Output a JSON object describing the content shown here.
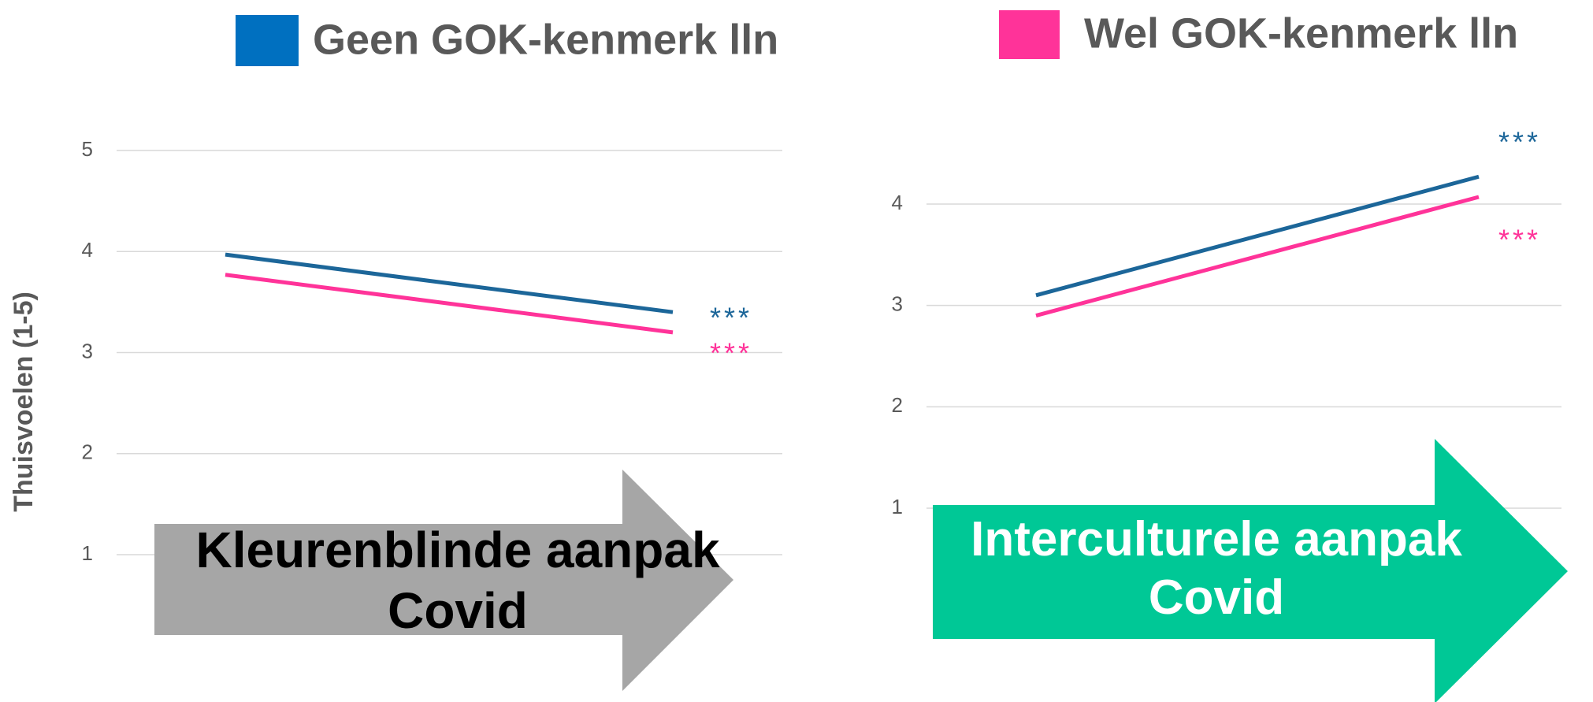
{
  "chart_data": [
    {
      "type": "line",
      "ylabel": "Thuisvoelen (1-5)",
      "categories": [
        null,
        null
      ],
      "series": [
        {
          "name": "Geen GOK-kenmerk lln",
          "color": "#1c6699",
          "values": [
            3.97,
            3.4
          ]
        },
        {
          "name": "Wel GOK-kenmerk lln",
          "color": "#ff3399",
          "values": [
            3.77,
            3.2
          ]
        }
      ],
      "ylim": [
        0,
        5
      ],
      "yticks": [
        1,
        2,
        3,
        4,
        5
      ],
      "grid": true,
      "annotations": [
        {
          "text": "***",
          "color": "#1c6699"
        },
        {
          "text": "***",
          "color": "#ff3399"
        }
      ],
      "arrow_label": "Kleurenblinde aanpak Covid",
      "arrow_color": "#a6a6a6",
      "arrow_text_color": "#000000"
    },
    {
      "type": "line",
      "categories": [
        null,
        null
      ],
      "series": [
        {
          "color": "#1c6699",
          "values": [
            3.1,
            4.27
          ]
        },
        {
          "color": "#ff3399",
          "values": [
            2.9,
            4.07
          ]
        }
      ],
      "ylim": [
        0,
        5
      ],
      "yticks": [
        1,
        2,
        3,
        4
      ],
      "grid": true,
      "annotations": [
        {
          "text": "***",
          "color": "#1c6699"
        },
        {
          "text": "***",
          "color": "#ff3399"
        }
      ],
      "arrow_label": "Interculturele aanpak Covid",
      "arrow_color": "#00c896",
      "arrow_text_color": "#ffffff"
    }
  ]
}
